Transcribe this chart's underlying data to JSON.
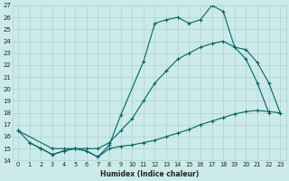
{
  "xlabel": "Humidex (Indice chaleur)",
  "color": "#006666",
  "bg_color": "#cceaea",
  "grid_color": "#b0d0d0",
  "ylim": [
    14,
    27
  ],
  "xlim": [
    -0.5,
    23.5
  ],
  "yticks": [
    14,
    15,
    16,
    17,
    18,
    19,
    20,
    21,
    22,
    23,
    24,
    25,
    26,
    27
  ],
  "xticks": [
    0,
    1,
    2,
    3,
    4,
    5,
    6,
    7,
    8,
    9,
    10,
    11,
    12,
    13,
    14,
    15,
    16,
    17,
    18,
    19,
    20,
    21,
    22,
    23
  ],
  "curve_top_x": [
    0,
    1,
    2,
    3,
    4,
    5,
    6,
    7,
    8,
    9,
    11,
    12,
    13,
    14,
    15,
    16,
    17,
    18,
    19,
    20,
    21,
    22
  ],
  "curve_top_y": [
    16.5,
    15.5,
    15.0,
    14.5,
    14.8,
    15.0,
    14.8,
    14.3,
    15.3,
    17.8,
    22.3,
    25.5,
    25.8,
    26.0,
    25.5,
    25.8,
    27.0,
    26.5,
    23.5,
    22.5,
    20.5,
    18.0
  ],
  "curve_mid_x": [
    0,
    3,
    4,
    5,
    6,
    7,
    8,
    9,
    10,
    11,
    12,
    13,
    14,
    15,
    16,
    17,
    18,
    19,
    20,
    21,
    22,
    23
  ],
  "curve_mid_y": [
    16.5,
    15.0,
    15.0,
    15.0,
    15.0,
    15.0,
    15.5,
    16.5,
    17.5,
    19.0,
    20.5,
    21.5,
    22.5,
    23.0,
    23.5,
    23.8,
    24.0,
    23.5,
    23.3,
    22.2,
    20.5,
    18.0
  ],
  "curve_bot_x": [
    1,
    2,
    3,
    4,
    5,
    6,
    7,
    8,
    9,
    10,
    11,
    12,
    13,
    14,
    15,
    16,
    17,
    18,
    19,
    20,
    21,
    22,
    23
  ],
  "curve_bot_y": [
    15.5,
    15.0,
    14.5,
    14.8,
    15.0,
    14.8,
    14.3,
    15.0,
    15.2,
    15.3,
    15.5,
    15.7,
    16.0,
    16.3,
    16.6,
    17.0,
    17.3,
    17.6,
    17.9,
    18.1,
    18.2,
    18.1,
    18.0
  ]
}
